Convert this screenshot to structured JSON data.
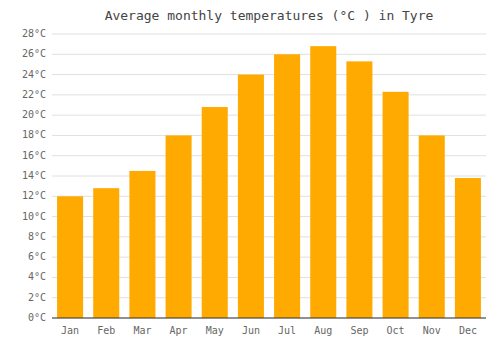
{
  "chart_data": {
    "type": "bar",
    "title": "Average monthly temperatures (°C ) in Tyre",
    "categories": [
      "Jan",
      "Feb",
      "Mar",
      "Apr",
      "May",
      "Jun",
      "Jul",
      "Aug",
      "Sep",
      "Oct",
      "Nov",
      "Dec"
    ],
    "values": [
      12.0,
      12.8,
      14.5,
      18.0,
      20.8,
      24.0,
      26.0,
      26.8,
      25.3,
      22.3,
      18.0,
      13.8
    ],
    "color": "#FFAA00",
    "ylim": [
      0,
      28
    ],
    "yticks": [
      {
        "value": 0,
        "label": "0°C"
      },
      {
        "value": 2,
        "label": "2°C"
      },
      {
        "value": 4,
        "label": "4°C"
      },
      {
        "value": 6,
        "label": "6°C"
      },
      {
        "value": 8,
        "label": "8°C"
      },
      {
        "value": 10,
        "label": "10°C"
      },
      {
        "value": 12,
        "label": "12°C"
      },
      {
        "value": 14,
        "label": "14°C"
      },
      {
        "value": 16,
        "label": "16°C"
      },
      {
        "value": 18,
        "label": "18°C"
      },
      {
        "value": 20,
        "label": "20°C"
      },
      {
        "value": 22,
        "label": "22°C"
      },
      {
        "value": 24,
        "label": "24°C"
      },
      {
        "value": 26,
        "label": "26°C"
      },
      {
        "value": 28,
        "label": "28°C"
      }
    ],
    "grid": true
  }
}
